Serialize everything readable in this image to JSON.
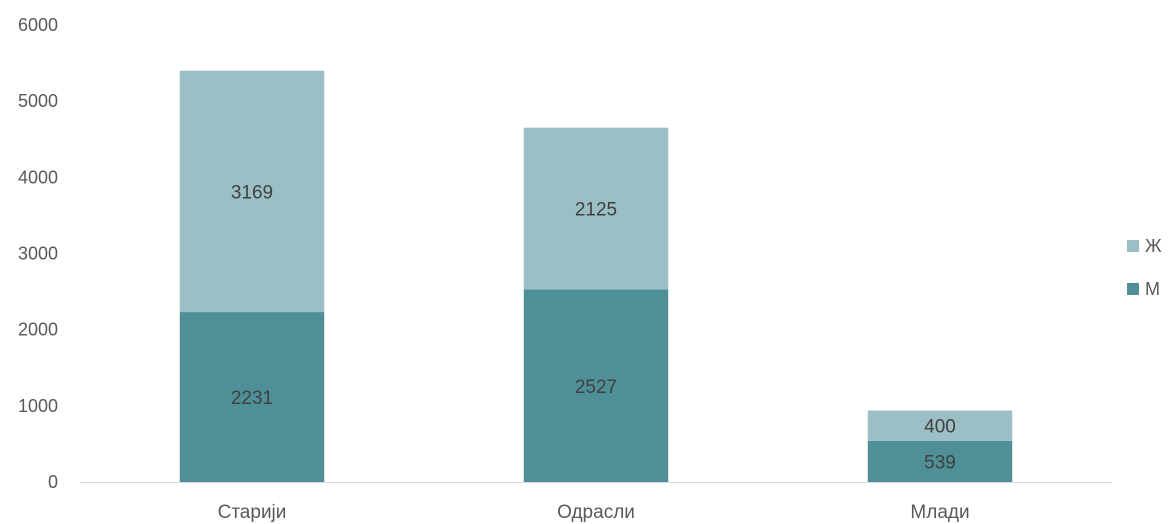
{
  "chart_data": {
    "type": "bar",
    "stacked": true,
    "categories": [
      "Старији",
      "Одрасли",
      "Млади"
    ],
    "series": [
      {
        "name": "М",
        "color": "#4e8f98",
        "values": [
          2231,
          2527,
          539
        ]
      },
      {
        "name": "Ж",
        "color": "#9bbfc5",
        "values": [
          3169,
          2125,
          400
        ]
      }
    ],
    "ylim": [
      0,
      6000
    ],
    "yticks": [
      0,
      1000,
      2000,
      3000,
      4000,
      5000,
      6000
    ],
    "grid": false,
    "legend_position": "right",
    "data_labels": true
  }
}
